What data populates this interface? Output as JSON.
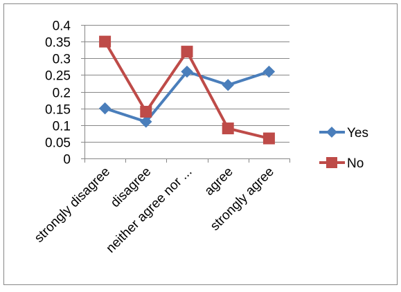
{
  "chart_data": {
    "type": "line",
    "categories": [
      "strongly disagree",
      "disagree",
      "neither agree nor ...",
      "agree",
      "strongly agree"
    ],
    "series": [
      {
        "name": "Yes",
        "values": [
          0.15,
          0.11,
          0.26,
          0.22,
          0.26
        ],
        "color": "#4A7EBB",
        "marker": "diamond"
      },
      {
        "name": "No",
        "values": [
          0.35,
          0.14,
          0.32,
          0.09,
          0.06
        ],
        "color": "#BE4B48",
        "marker": "square"
      }
    ],
    "y_ticks": [
      "0",
      "0.05",
      "0.1",
      "0.15",
      "0.2",
      "0.25",
      "0.3",
      "0.35",
      "0.4"
    ],
    "ylim": [
      0,
      0.4
    ],
    "grid": true,
    "legend": "right",
    "title": "",
    "xlabel": "",
    "ylabel": ""
  }
}
